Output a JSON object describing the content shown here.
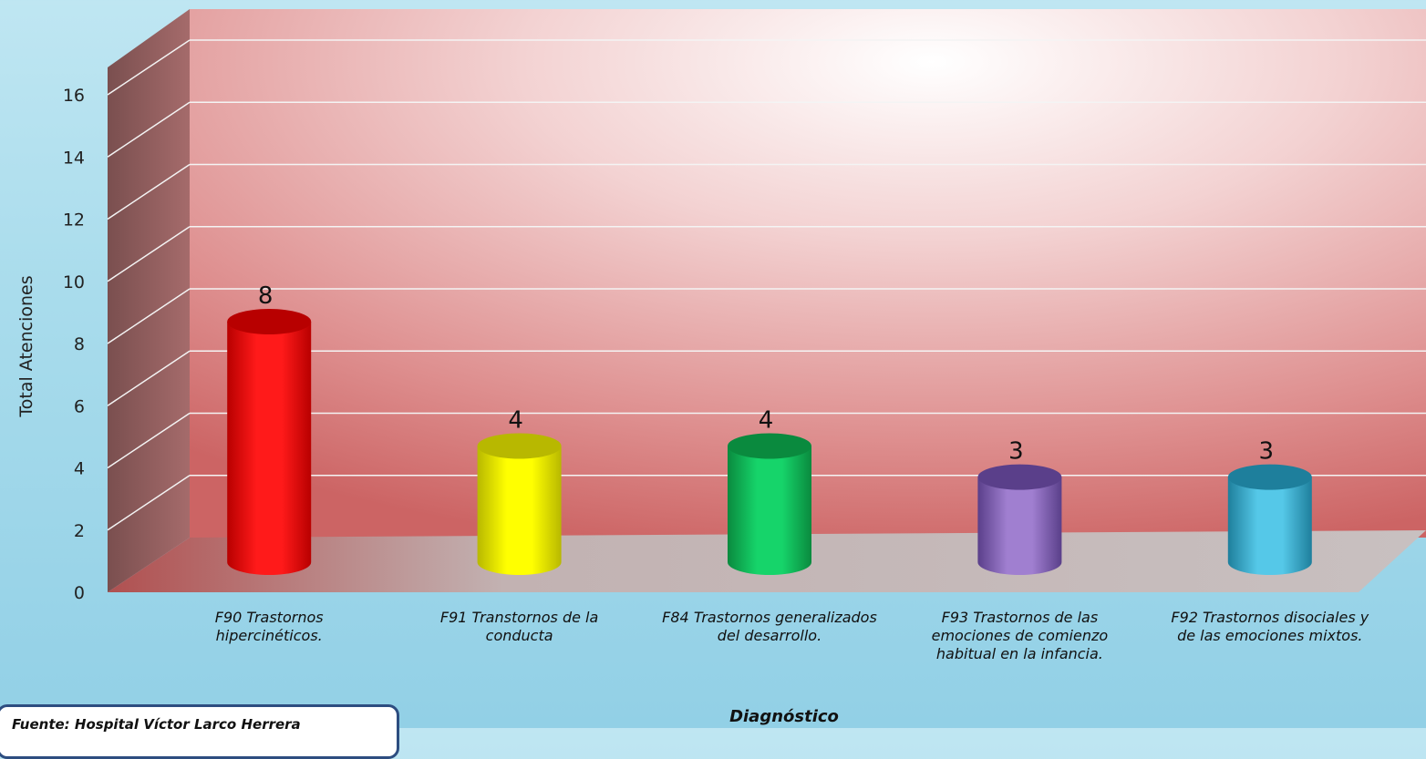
{
  "chart_data": {
    "type": "bar",
    "categories": [
      [
        "F90 Trastornos",
        "hipercinéticos."
      ],
      [
        "F91 Transtornos de la",
        "conducta"
      ],
      [
        "F84 Trastornos generalizados",
        "del desarrollo."
      ],
      [
        "F93 Trastornos de las",
        "emociones de comienzo",
        "habitual en la infancia."
      ],
      [
        "F92 Trastornos disociales y",
        "de las emociones mixtos."
      ]
    ],
    "values": [
      8,
      4,
      4,
      3,
      3
    ],
    "value_labels": [
      "8",
      "4",
      "4",
      "3",
      "3"
    ],
    "bar_colors": [
      "#ff1a1a",
      "#ffff00",
      "#16d46a",
      "#a07fd0",
      "#55c8e8"
    ],
    "bar_dark_colors": [
      "#b80000",
      "#b8b800",
      "#0a8a3e",
      "#5a3f8a",
      "#1e7f9c"
    ],
    "xlabel": "Diagnóstico",
    "ylabel": "Total Atenciones",
    "ylim": [
      0,
      16
    ],
    "yticks": [
      "0",
      "2",
      "4",
      "6",
      "8",
      "10",
      "12",
      "14",
      "16"
    ],
    "grid": true
  },
  "source_text": "Fuente: Hospital Víctor Larco Herrera"
}
